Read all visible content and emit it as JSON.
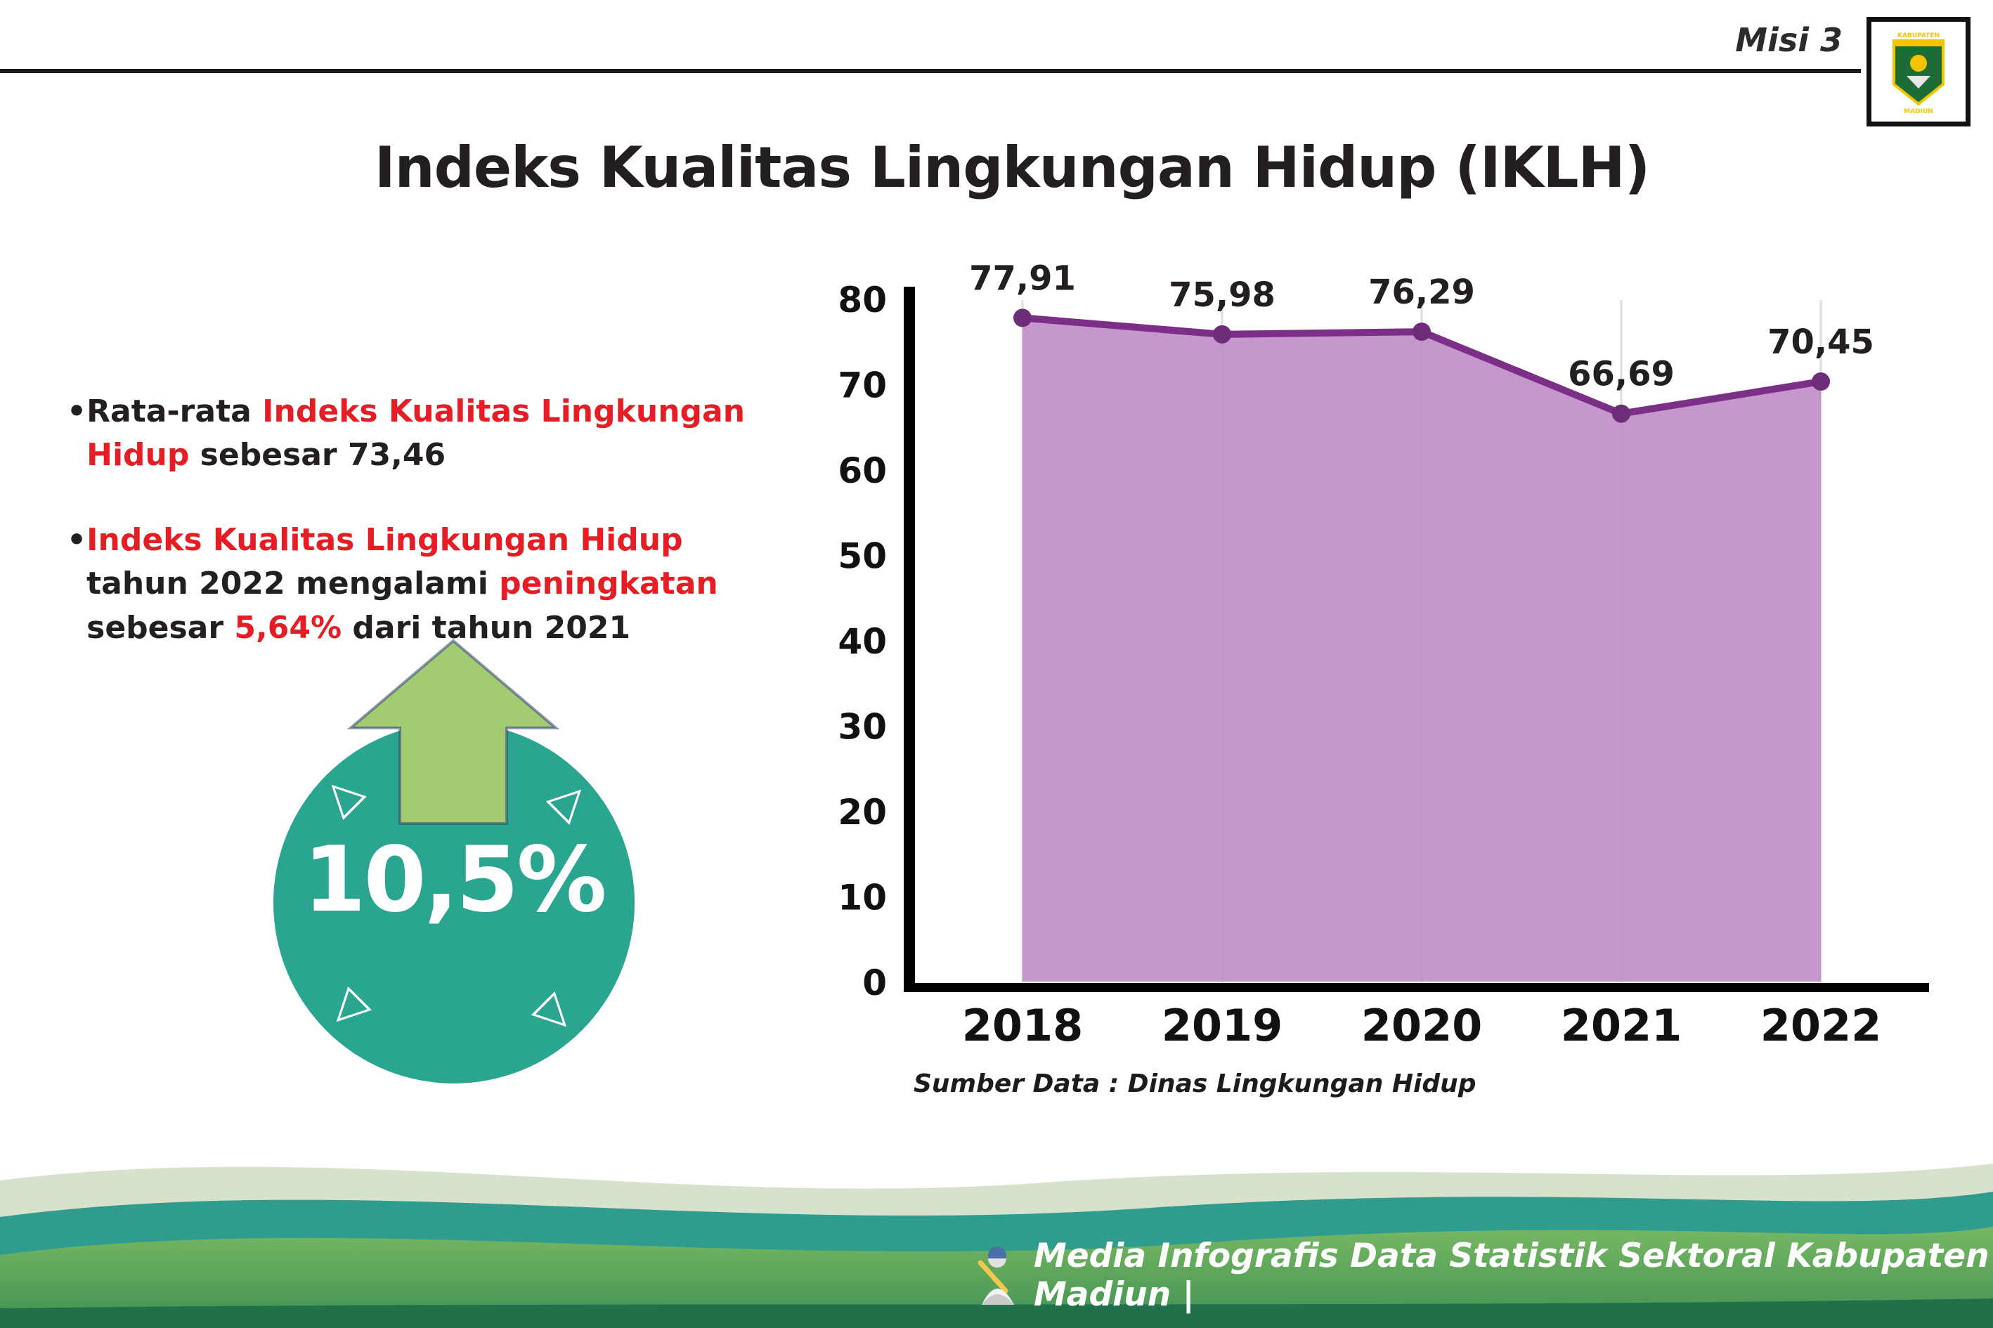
{
  "header": {
    "misi": "Misi 3",
    "title": "Indeks Kualitas Lingkungan Hidup (IKLH)",
    "logo": {
      "top_text": "KABUPATEN",
      "bottom_text": "MADIUN"
    }
  },
  "bullets": {
    "marker": "•",
    "b1": {
      "pre": "Rata-rata ",
      "red": "Indeks Kualitas Lingkungan Hidup",
      "post": " sebesar 73,46"
    },
    "b2": {
      "red1": "Indeks Kualitas Lingkungan Hidup",
      "mid1": " tahun 2022 mengalami ",
      "red2": "peningkatan",
      "mid2": " sebesar ",
      "red3": "5,64%",
      "post": " dari tahun 2021"
    }
  },
  "badge": {
    "value": "10,5%"
  },
  "chart_data": {
    "type": "area",
    "title": "",
    "xlabel": "",
    "ylabel": "",
    "categories": [
      "2018",
      "2019",
      "2020",
      "2021",
      "2022"
    ],
    "values": [
      77.91,
      75.98,
      76.29,
      66.69,
      70.45
    ],
    "value_labels": [
      "77,91",
      "75,98",
      "76,29",
      "66,69",
      "70,45"
    ],
    "ylim": [
      0,
      80
    ],
    "yticks": [
      0,
      10,
      20,
      30,
      40,
      50,
      60,
      70,
      80
    ],
    "grid": "vertical-light",
    "legend": "none",
    "colors": {
      "line": "#7c2f87",
      "fill": "#c08cc7",
      "point": "#6d2d79",
      "axis": "#000000",
      "label": "#231f20"
    }
  },
  "source": "Sumber Data : Dinas Lingkungan Hidup",
  "footer": {
    "text": "Media Infografis Data Statistik Sektoral Kabupaten Madiun |"
  },
  "palette": {
    "accent_red": "#e51e25",
    "badge_teal": "#2aa58f",
    "arrow_green": "#a3cc72",
    "wave_teal": "#2f9c8d",
    "wave_green": "#5aa85c",
    "text_dark": "#231f20"
  }
}
